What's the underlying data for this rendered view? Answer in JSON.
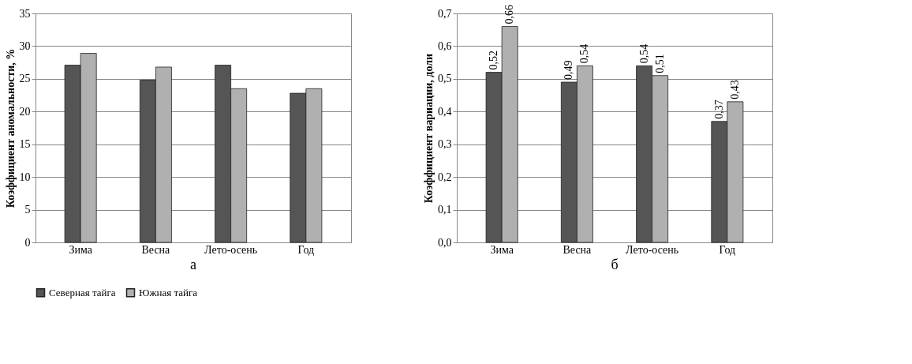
{
  "chart_data": [
    {
      "type": "bar",
      "categories": [
        "Зима",
        "Весна",
        "Лето-осень",
        "Год"
      ],
      "ylabel": "Коэффициент аномальности, %",
      "ylim": [
        0,
        35
      ],
      "yticks": [
        0,
        5,
        10,
        15,
        20,
        25,
        30,
        35
      ],
      "grid": "y",
      "legend": "bottom",
      "annotations": [
        "а"
      ],
      "series": [
        {
          "name": "Северная тайга",
          "color": "#555555",
          "values": [
            27.1,
            24.8,
            27.1,
            22.8
          ]
        },
        {
          "name": "Южная тайга",
          "color": "#b0b0b0",
          "values": [
            28.9,
            26.8,
            23.5,
            23.5
          ]
        }
      ]
    },
    {
      "type": "bar",
      "categories": [
        "Зима",
        "Весна",
        "Лето-осень",
        "Год"
      ],
      "ylabel": "Коэффициент вариации, доли",
      "ylim": [
        0,
        0.7
      ],
      "yticks": [
        {
          "value": 0,
          "label": "0,0"
        },
        {
          "value": 0.1,
          "label": "0,1"
        },
        {
          "value": 0.2,
          "label": "0,2"
        },
        {
          "value": 0.3,
          "label": "0,3"
        },
        {
          "value": 0.4,
          "label": "0,4"
        },
        {
          "value": 0.5,
          "label": "0,5"
        },
        {
          "value": 0.6,
          "label": "0,6"
        },
        {
          "value": 0.7,
          "label": "0,7"
        }
      ],
      "grid": "y",
      "legend": "bottom",
      "annotations": [
        "б"
      ],
      "series": [
        {
          "name": "Северная тайга",
          "color": "#555555",
          "values": [
            0.52,
            0.49,
            0.54,
            0.37
          ],
          "value_labels": [
            "0,52",
            "0,49",
            "0,54",
            "0,37"
          ]
        },
        {
          "name": "Южная тайга",
          "color": "#b0b0b0",
          "values": [
            0.66,
            0.54,
            0.51,
            0.43
          ],
          "value_labels": [
            "0,66",
            "0,54",
            "0,51",
            "0,43"
          ]
        }
      ]
    }
  ]
}
